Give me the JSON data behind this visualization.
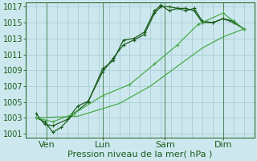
{
  "background_color": "#cce8ee",
  "grid_color": "#aacdd6",
  "line_color_dark": "#1a5c1a",
  "line_color_light": "#4aaa4a",
  "xlabel": "Pression niveau de la mer( hPa )",
  "ylim": [
    1000.5,
    1017.5
  ],
  "yticks": [
    1001,
    1003,
    1005,
    1007,
    1009,
    1011,
    1013,
    1015,
    1017
  ],
  "xlim": [
    -0.3,
    10.3
  ],
  "day_positions": [
    0.5,
    3.2,
    6.2,
    9.0
  ],
  "day_labels": [
    "Ven",
    "Lun",
    "Sam",
    "Dim"
  ],
  "day_line_x": [
    0.5,
    3.2,
    6.2,
    9.0
  ],
  "series": [
    {
      "x": [
        0.0,
        0.4,
        0.8,
        1.5,
        2.0,
        2.5,
        3.2,
        3.7,
        4.2,
        4.7,
        5.2,
        5.7,
        6.0,
        6.4,
        6.8,
        7.2,
        7.6,
        8.0,
        8.5,
        9.0,
        9.5,
        10.0
      ],
      "y": [
        1003.5,
        1002.2,
        1002.0,
        1002.8,
        1004.5,
        1005.1,
        1008.8,
        1010.5,
        1012.2,
        1012.8,
        1013.5,
        1016.2,
        1017.0,
        1017.0,
        1016.8,
        1016.5,
        1016.8,
        1015.2,
        1015.0,
        1015.5,
        1015.2,
        1014.2
      ],
      "style": "dark",
      "marker": "+"
    },
    {
      "x": [
        0.0,
        0.4,
        0.8,
        1.2,
        1.8,
        2.5,
        3.2,
        3.7,
        4.2,
        4.7,
        5.2,
        5.7,
        6.0,
        6.4,
        6.8,
        7.2,
        7.6,
        8.0,
        8.5,
        9.0,
        9.5,
        10.0
      ],
      "y": [
        1003.0,
        1002.5,
        1001.2,
        1001.8,
        1003.5,
        1005.0,
        1009.2,
        1010.2,
        1012.8,
        1013.0,
        1013.8,
        1016.5,
        1017.2,
        1016.5,
        1016.8,
        1016.8,
        1016.5,
        1015.0,
        1015.0,
        1015.5,
        1015.0,
        1014.2
      ],
      "style": "dark",
      "marker": "+"
    },
    {
      "x": [
        0.0,
        0.8,
        1.8,
        3.2,
        4.5,
        5.7,
        6.8,
        7.8,
        9.0,
        10.0
      ],
      "y": [
        1003.0,
        1002.5,
        1003.5,
        1005.8,
        1007.2,
        1009.8,
        1012.2,
        1014.8,
        1016.2,
        1014.2
      ],
      "style": "light",
      "marker": "+"
    },
    {
      "x": [
        0.0,
        2.0,
        4.0,
        5.5,
        6.8,
        8.0,
        9.0,
        10.0
      ],
      "y": [
        1003.0,
        1003.2,
        1004.8,
        1007.0,
        1009.5,
        1011.8,
        1013.2,
        1014.2
      ],
      "style": "light",
      "marker": null
    }
  ],
  "font_size_xlabel": 8,
  "font_size_ytick": 7,
  "font_size_xtick": 8
}
